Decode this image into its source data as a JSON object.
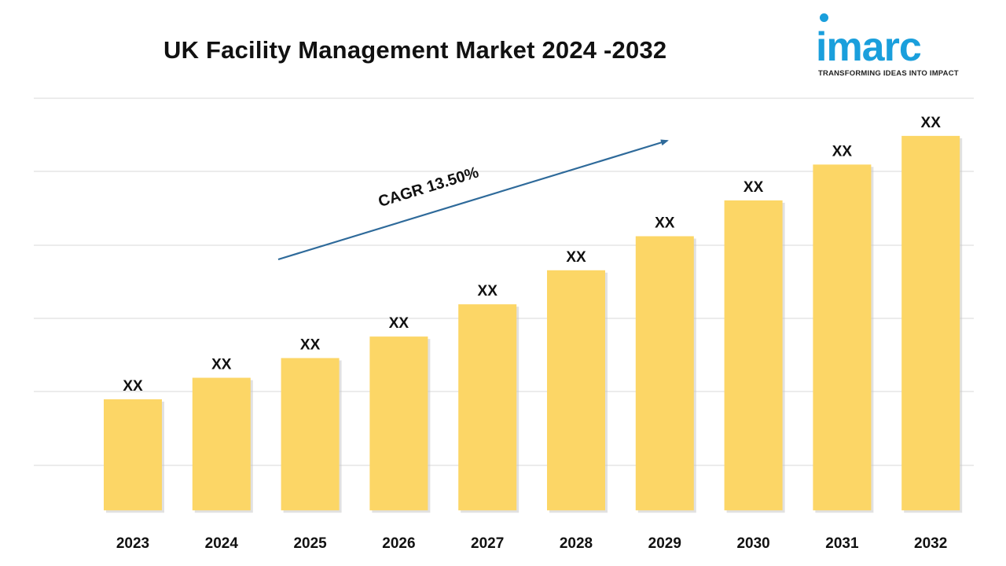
{
  "header": {
    "title": "UK Facility Management Market 2024 -2032"
  },
  "logo": {
    "word": "imarc",
    "tagline": "TRANSFORMING IDEAS INTO IMPACT",
    "color": "#1a9fdc"
  },
  "chart_data": {
    "type": "bar",
    "title": "UK Facility Management Market 2024 -2032",
    "categories": [
      "2023",
      "2024",
      "2025",
      "2026",
      "2027",
      "2028",
      "2029",
      "2030",
      "2031",
      "2032"
    ],
    "values": [
      31,
      37,
      42.5,
      48.5,
      57.5,
      67,
      76.5,
      86.5,
      96.5,
      104.5
    ],
    "data_labels": [
      "XX",
      "XX",
      "XX",
      "XX",
      "XX",
      "XX",
      "XX",
      "XX",
      "XX",
      "XX"
    ],
    "ylim": [
      -5,
      115
    ],
    "grid": true,
    "bar_color": "#fcd666",
    "annotation": {
      "text": "CAGR 13.50%",
      "arrow_color": "#2e6a9a"
    }
  }
}
